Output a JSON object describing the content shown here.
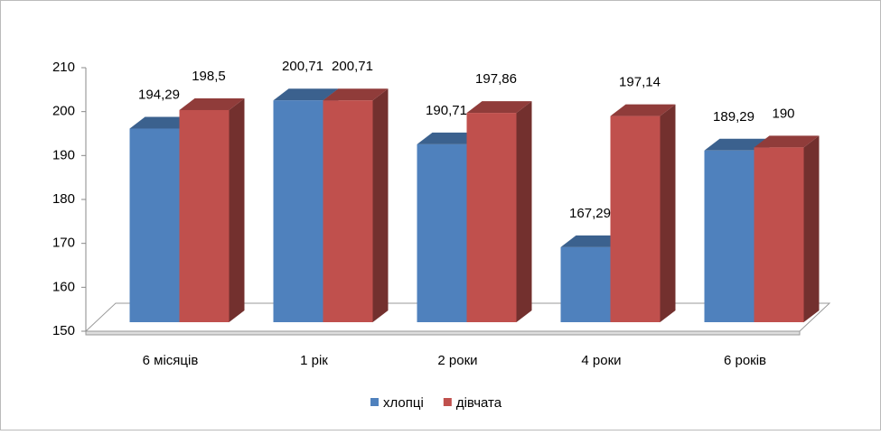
{
  "chart_data": {
    "type": "bar3d",
    "categories": [
      "6 місяців",
      "1 рік",
      "2 роки",
      "4 роки",
      "6 років"
    ],
    "series": [
      {
        "name": "хлопці",
        "color": "#4f81bd",
        "values": [
          194.29,
          200.71,
          190.71,
          167.29,
          189.29
        ],
        "value_labels": [
          "194,29",
          "200,71",
          "190,71",
          "167,29",
          "189,29"
        ]
      },
      {
        "name": "дівчата",
        "color": "#c0504d",
        "values": [
          198.5,
          200.71,
          197.86,
          197.14,
          190
        ],
        "value_labels": [
          "198,5",
          "200,71",
          "197,86",
          "197,14",
          "190"
        ]
      }
    ],
    "ylim": [
      150,
      210
    ],
    "yticks": [
      150,
      160,
      170,
      180,
      190,
      200,
      210
    ],
    "legend": "bottom"
  }
}
